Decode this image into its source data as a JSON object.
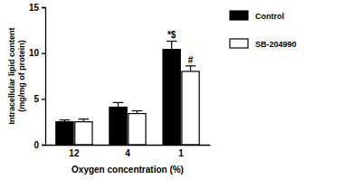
{
  "chart_data": {
    "type": "bar",
    "categories": [
      "12",
      "4",
      "1"
    ],
    "x_label": "Oxygen concentration (%)",
    "y_label": [
      "Intracellular lipid content",
      "(mg/mg of protein)"
    ],
    "ylim": [
      0,
      15
    ],
    "yticks": [
      0,
      5,
      10,
      15
    ],
    "legend": "upper right",
    "series": [
      {
        "name": "Control",
        "color": "#000000",
        "values": [
          2.5,
          4.1,
          10.4
        ],
        "errors": [
          0.2,
          0.5,
          0.9
        ],
        "annotations": [
          null,
          null,
          "*$"
        ]
      },
      {
        "name": "SB-204990",
        "color": "#ffffff",
        "values": [
          2.5,
          3.4,
          8.0
        ],
        "errors": [
          0.3,
          0.3,
          0.6
        ],
        "annotations": [
          null,
          null,
          "#"
        ]
      }
    ]
  }
}
